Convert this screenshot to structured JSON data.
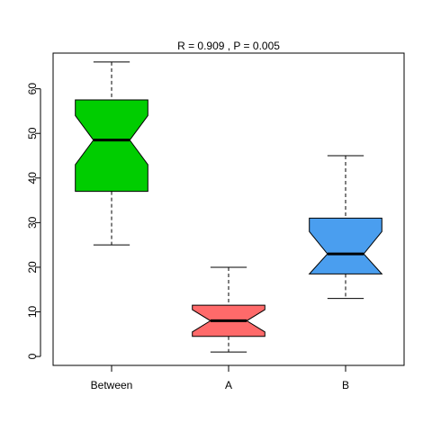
{
  "chart_data": {
    "type": "boxplot",
    "title": "R = 0.909 ,  P = 0.005",
    "xlabel": "",
    "ylabel": "",
    "ylim": [
      -2,
      68
    ],
    "y_ticks": [
      0,
      10,
      20,
      30,
      40,
      50,
      60
    ],
    "y_tick_labels": [
      "0",
      "10",
      "20",
      "30",
      "40",
      "50",
      "60"
    ],
    "notched": true,
    "grid": false,
    "categories": [
      "Between",
      "A",
      "B"
    ],
    "boxes": [
      {
        "label": "Between",
        "min": 25,
        "q1": 37,
        "median": 48.5,
        "q3": 57.5,
        "max": 66,
        "notch_low": 43,
        "notch_high": 54,
        "color": "#00CD00"
      },
      {
        "label": "A",
        "min": 1,
        "q1": 4.5,
        "median": 8,
        "q3": 11.5,
        "max": 20,
        "notch_low": 5.5,
        "notch_high": 10.5,
        "color": "#FF6A6A"
      },
      {
        "label": "B",
        "min": 13,
        "q1": 18.5,
        "median": 23,
        "q3": 31,
        "max": 45,
        "notch_low": 18.5,
        "notch_high": 28,
        "color": "#4A9EEF"
      }
    ]
  }
}
